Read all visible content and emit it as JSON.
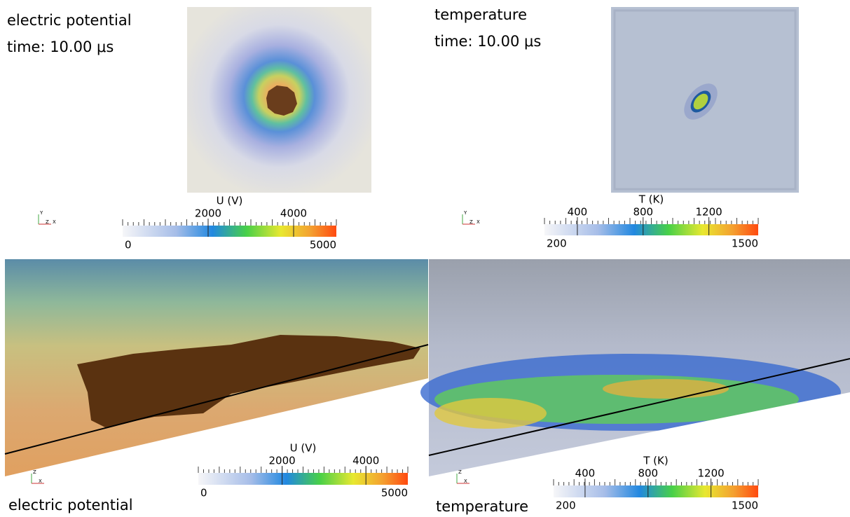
{
  "panels": [
    {
      "title": "electric potential",
      "time": "time: 10.00 μs",
      "axis_labels": [
        "Y",
        "Z",
        "X"
      ],
      "colorbar": {
        "title": "U (V)",
        "min": 0,
        "max": 5000,
        "labels": [
          2000,
          4000
        ]
      }
    },
    {
      "title": "temperature",
      "time": "time: 10.00 μs",
      "axis_labels": [
        "Y",
        "Z",
        "X"
      ],
      "colorbar": {
        "title": "T (K)",
        "min": 200,
        "max": 1500,
        "labels": [
          400,
          800,
          1200
        ]
      }
    },
    {
      "title": "electric potential",
      "axis_labels": [
        "Z",
        "X"
      ],
      "colorbar": {
        "title": "U (V)",
        "min": 0,
        "max": 5000,
        "labels": [
          2000,
          4000
        ]
      }
    },
    {
      "title": "temperature",
      "axis_labels": [
        "Z",
        "X"
      ],
      "colorbar": {
        "title": "T (K)",
        "min": 200,
        "max": 1500,
        "labels": [
          400,
          800,
          1200
        ]
      }
    }
  ]
}
